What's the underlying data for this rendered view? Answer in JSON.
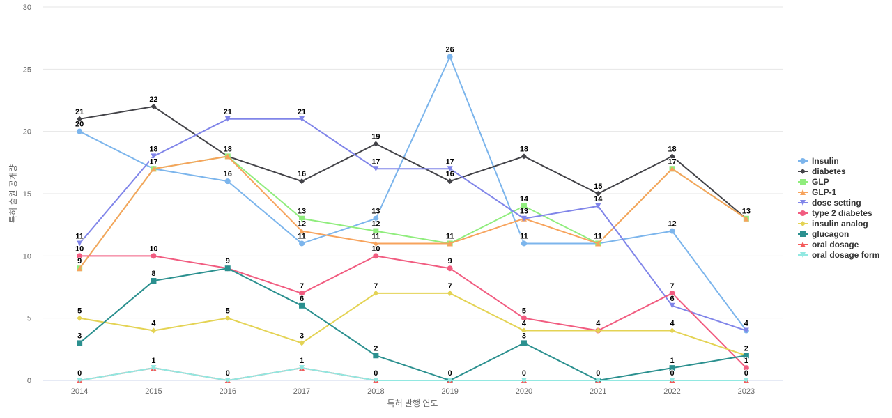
{
  "chart_data": {
    "type": "line",
    "title": "",
    "xlabel": "특허 발행 연도",
    "ylabel": "특허 출원 공개량",
    "ylim": [
      0,
      30
    ],
    "yticks": [
      0,
      5,
      10,
      15,
      20,
      25,
      30
    ],
    "grid": "horizontal",
    "legend_position": "right",
    "categories": [
      "2014",
      "2015",
      "2016",
      "2017",
      "2018",
      "2019",
      "2020",
      "2021",
      "2022",
      "2023"
    ],
    "series": [
      {
        "name": "Insulin",
        "color": "#7cb5ec",
        "marker": "circle",
        "values": [
          20,
          17,
          16,
          11,
          13,
          26,
          11,
          11,
          12,
          4
        ]
      },
      {
        "name": "diabetes",
        "color": "#434348",
        "marker": "diamond",
        "values": [
          21,
          22,
          18,
          16,
          19,
          16,
          18,
          15,
          18,
          13
        ]
      },
      {
        "name": "GLP",
        "color": "#90ed7d",
        "marker": "square",
        "values": [
          9,
          17,
          18,
          13,
          12,
          11,
          14,
          11,
          17,
          13
        ]
      },
      {
        "name": "GLP-1",
        "color": "#f7a35c",
        "marker": "triangle",
        "values": [
          9,
          17,
          18,
          12,
          11,
          11,
          13,
          11,
          17,
          13
        ]
      },
      {
        "name": "dose setting",
        "color": "#8085e9",
        "marker": "triangle-down",
        "values": [
          11,
          18,
          21,
          21,
          17,
          17,
          13,
          14,
          6,
          4
        ]
      },
      {
        "name": "type 2 diabetes",
        "color": "#f15c80",
        "marker": "circle",
        "values": [
          10,
          10,
          9,
          7,
          10,
          9,
          5,
          4,
          7,
          1
        ]
      },
      {
        "name": "insulin analog",
        "color": "#e4d354",
        "marker": "diamond",
        "values": [
          5,
          4,
          5,
          3,
          7,
          7,
          4,
          4,
          4,
          2
        ]
      },
      {
        "name": "glucagon",
        "color": "#2b908f",
        "marker": "square",
        "values": [
          3,
          8,
          9,
          6,
          2,
          0,
          3,
          0,
          1,
          2
        ]
      },
      {
        "name": "oral dosage",
        "color": "#f45b5b",
        "marker": "triangle",
        "values": [
          0,
          1,
          0,
          1,
          0,
          0,
          0,
          0,
          0,
          0
        ]
      },
      {
        "name": "oral dosage form",
        "color": "#91e8e1",
        "marker": "triangle-down",
        "values": [
          0,
          1,
          0,
          1,
          0,
          0,
          0,
          0,
          0,
          0
        ]
      }
    ]
  }
}
